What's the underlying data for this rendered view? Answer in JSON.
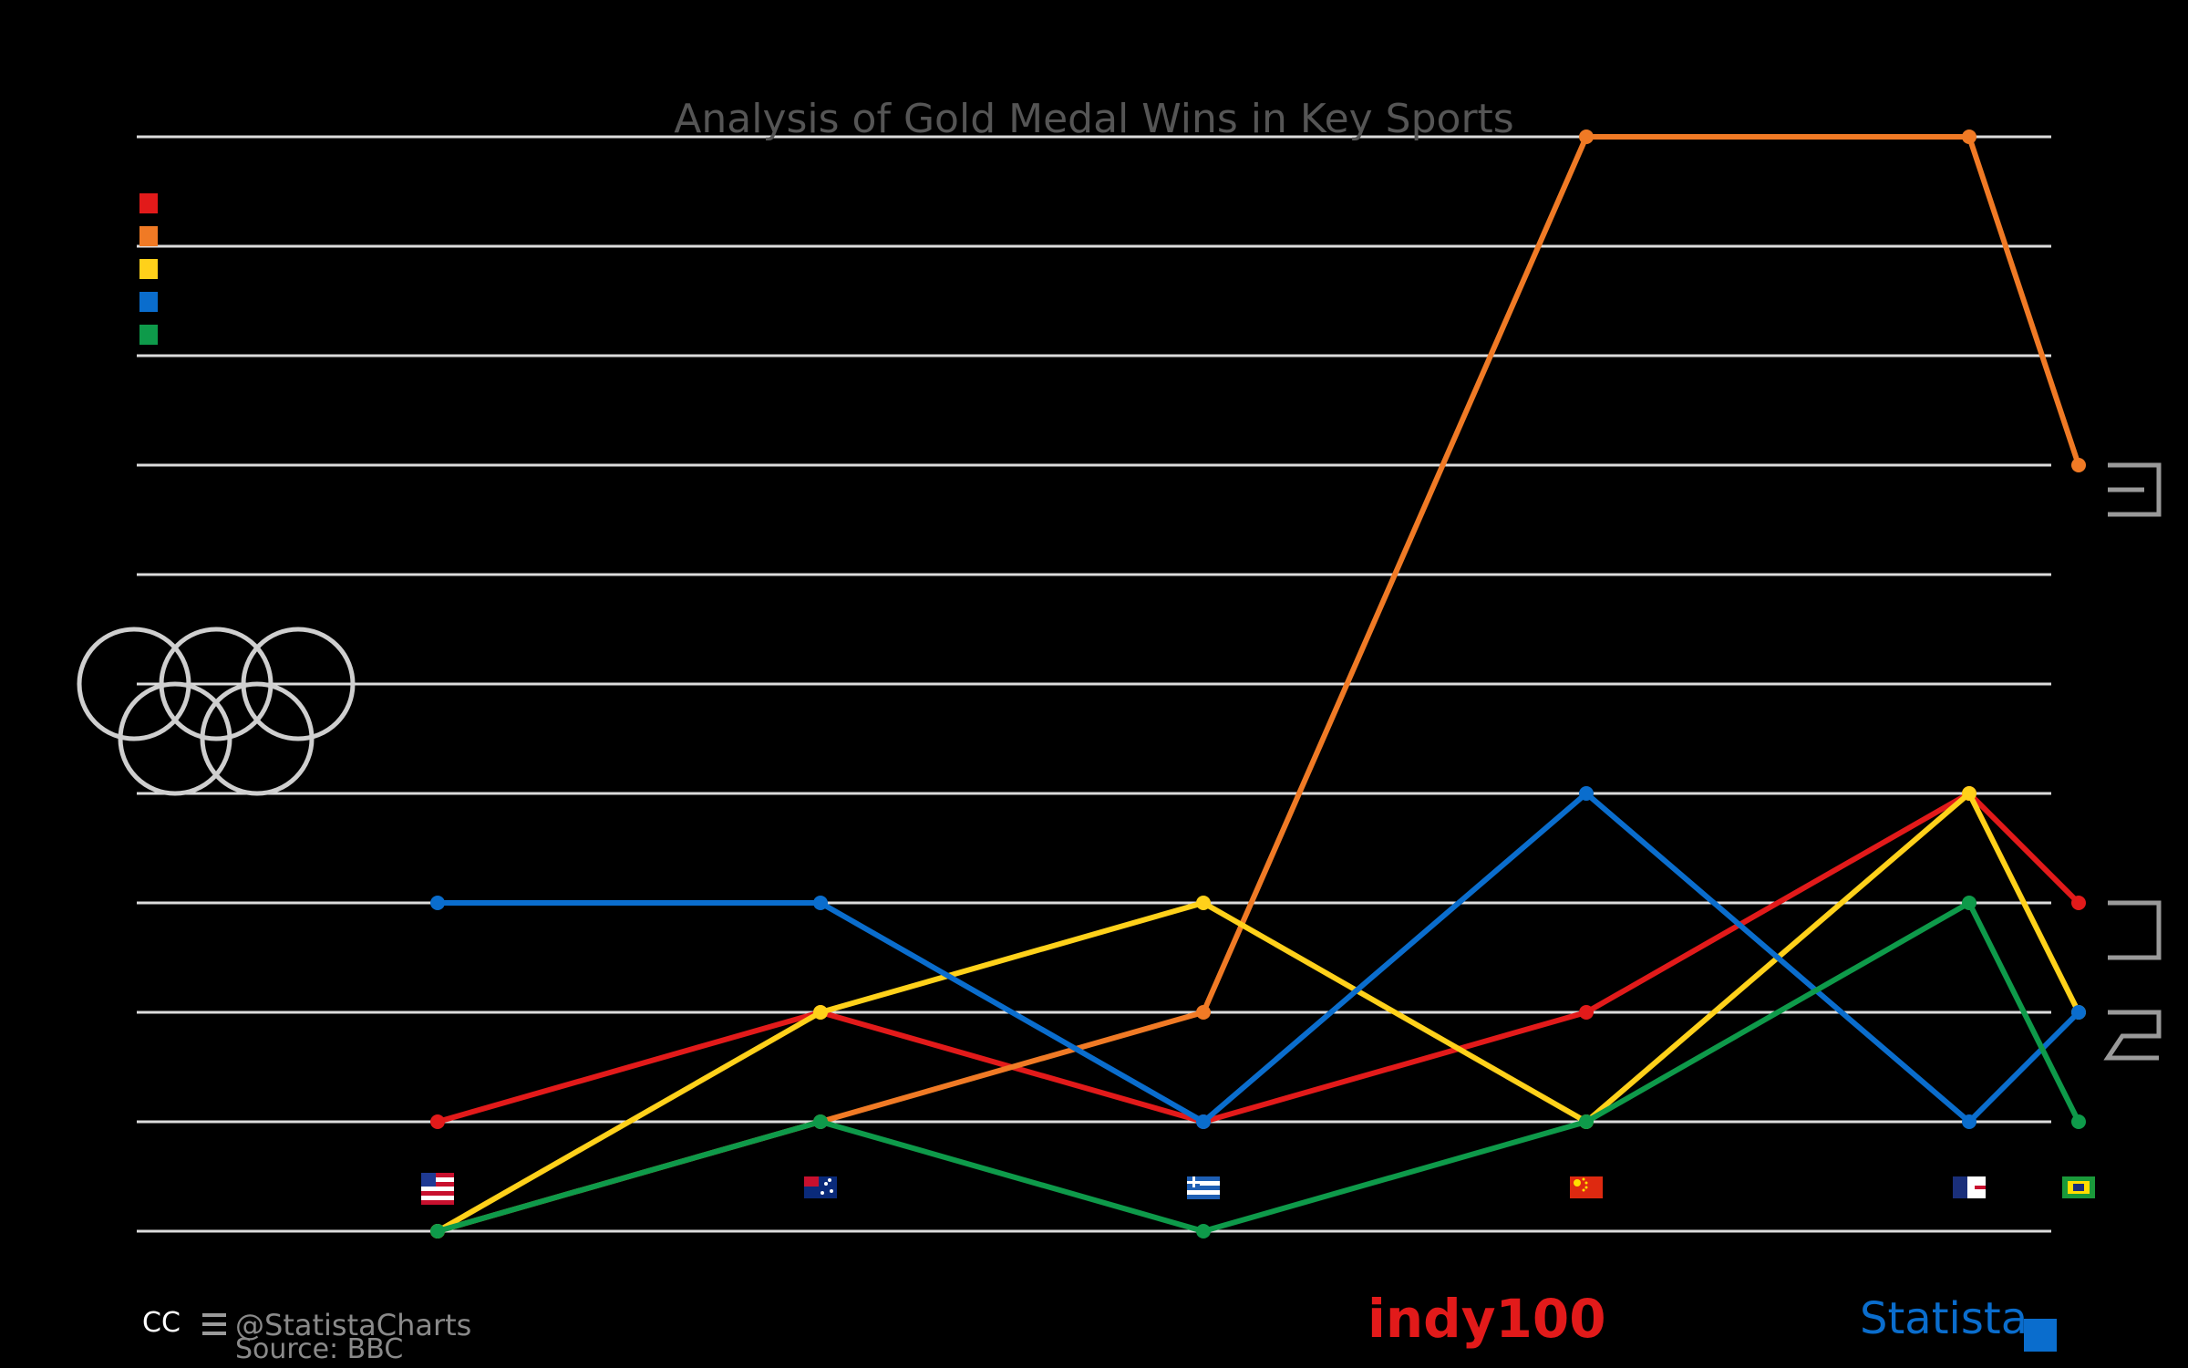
{
  "chart_data": {
    "type": "line",
    "title": "Analysis of Gold Medal Wins in Key Sports",
    "xlabel": "",
    "ylabel": "",
    "ylim": [
      0,
      10
    ],
    "grid": true,
    "legend": "top-left",
    "categories": [
      "",
      "",
      "",
      "",
      "",
      ""
    ],
    "flag_icons": [
      "usa-flag-icon",
      "australia-flag-icon",
      "greece-flag-icon",
      "china-flag-icon",
      "uk-flag-icon",
      "brazil-flag-icon"
    ],
    "series": [
      {
        "color": "#e21a1a",
        "values": [
          1,
          2,
          1,
          2,
          4,
          3
        ]
      },
      {
        "color": "#f07a25",
        "values": [
          0,
          1,
          2,
          10,
          10,
          7
        ]
      },
      {
        "color": "#ffd11a",
        "values": [
          0,
          2,
          3,
          1,
          4,
          2
        ]
      },
      {
        "color": "#0a6dcd",
        "values": [
          3,
          3,
          1,
          4,
          1,
          2
        ]
      },
      {
        "color": "#0e9a4a",
        "values": [
          0,
          1,
          0,
          1,
          3,
          1
        ]
      }
    ]
  },
  "footer": {
    "handle": "@StatistaCharts",
    "source": "Source: BBC",
    "indy_logo": "indy100",
    "statista_logo": "Statista",
    "license_badge": "CC"
  },
  "colors": {
    "grid": "#dcdcdc",
    "title": "#555555",
    "indy": "#e21a1a",
    "statista": "#0a6dcd"
  }
}
